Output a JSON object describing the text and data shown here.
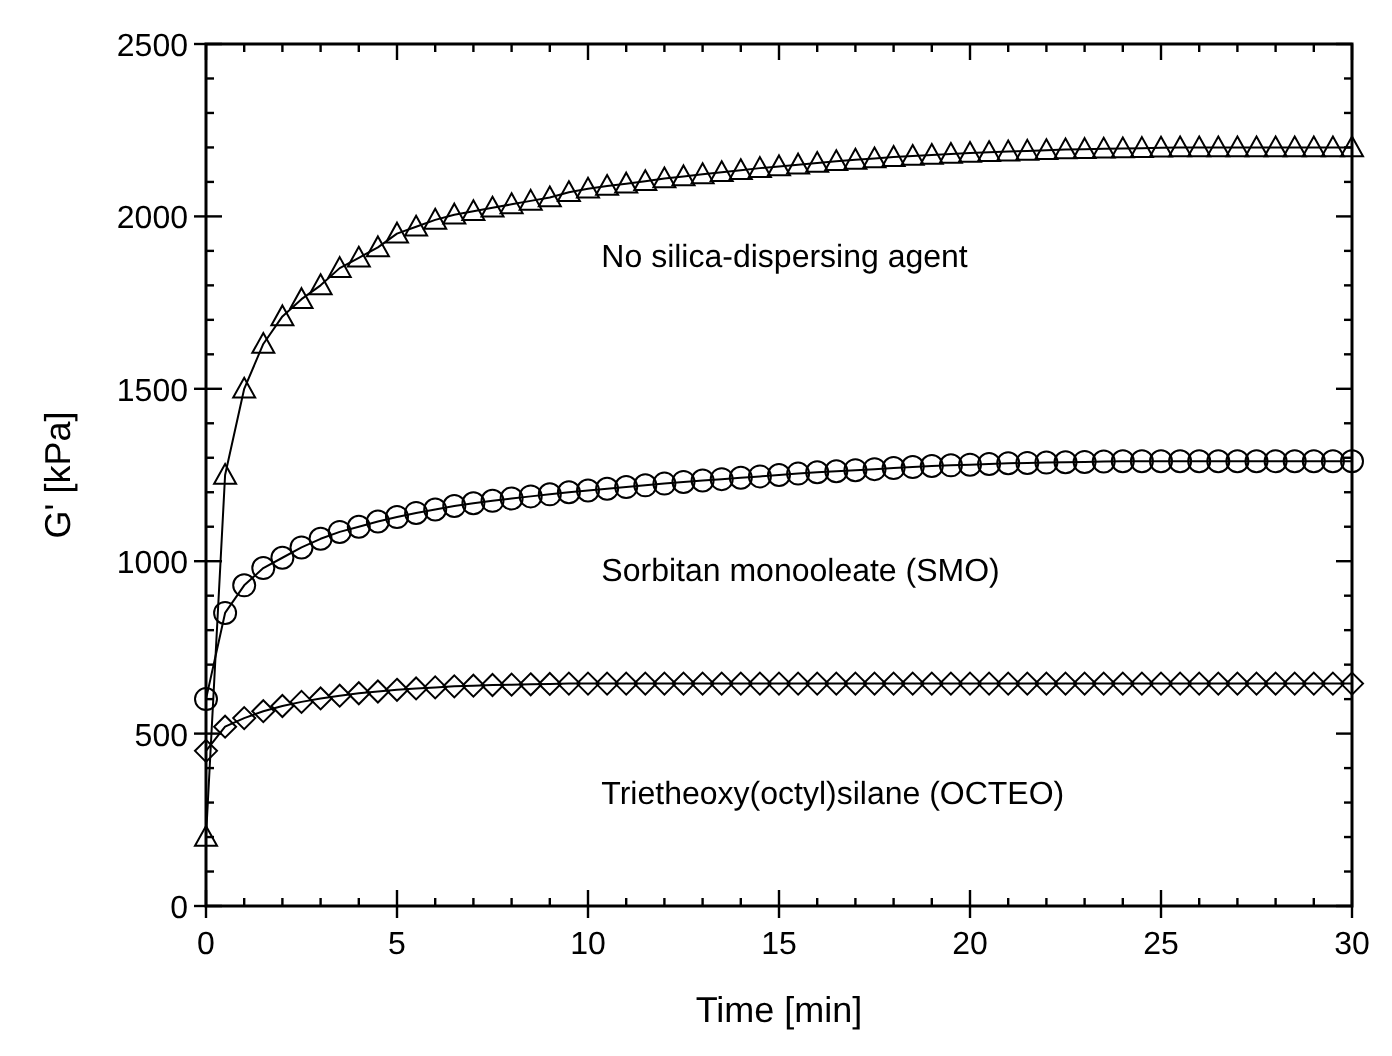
{
  "chart_data": {
    "type": "line",
    "xlabel": "Time [min]",
    "ylabel": "G' [kPa]",
    "x": [
      0,
      0.5,
      1,
      1.5,
      2,
      2.5,
      3,
      3.5,
      4,
      4.5,
      5,
      5.5,
      6,
      6.5,
      7,
      7.5,
      8,
      8.5,
      9,
      9.5,
      10,
      10.5,
      11,
      11.5,
      12,
      12.5,
      13,
      13.5,
      14,
      14.5,
      15,
      15.5,
      16,
      16.5,
      17,
      17.5,
      18,
      18.5,
      19,
      19.5,
      20,
      20.5,
      21,
      21.5,
      22,
      22.5,
      23,
      23.5,
      24,
      24.5,
      25,
      25.5,
      26,
      26.5,
      27,
      27.5,
      28,
      28.5,
      29,
      29.5,
      30
    ],
    "xlim": [
      0,
      30
    ],
    "xticks": [
      0,
      5,
      10,
      15,
      20,
      25,
      30
    ],
    "ylim": [
      0,
      2500
    ],
    "yticks": [
      0,
      500,
      1000,
      1500,
      2000,
      2500
    ],
    "grid": false,
    "line_style": "solid",
    "series": [
      {
        "name": "No silica-dispersing agent",
        "color": "#000000",
        "marker": "triangle",
        "values": [
          200,
          1250,
          1500,
          1630,
          1710,
          1760,
          1800,
          1850,
          1880,
          1910,
          1950,
          1970,
          1990,
          2005,
          2015,
          2025,
          2035,
          2045,
          2055,
          2070,
          2080,
          2088,
          2095,
          2102,
          2110,
          2116,
          2122,
          2128,
          2134,
          2140,
          2145,
          2150,
          2155,
          2160,
          2164,
          2168,
          2172,
          2175,
          2178,
          2181,
          2184,
          2186,
          2188,
          2190,
          2192,
          2194,
          2195,
          2196,
          2197,
          2198,
          2199,
          2200,
          2200,
          2200,
          2200,
          2200,
          2200,
          2200,
          2200,
          2200,
          2200
        ]
      },
      {
        "name": "Sorbitan monooleate (SMO)",
        "color": "#000000",
        "marker": "circle",
        "values": [
          600,
          850,
          930,
          980,
          1010,
          1040,
          1065,
          1085,
          1100,
          1115,
          1128,
          1140,
          1150,
          1160,
          1168,
          1175,
          1182,
          1188,
          1194,
          1200,
          1205,
          1210,
          1215,
          1220,
          1225,
          1230,
          1234,
          1238,
          1242,
          1246,
          1250,
          1254,
          1258,
          1261,
          1264,
          1267,
          1270,
          1273,
          1276,
          1278,
          1280,
          1282,
          1284,
          1285,
          1286,
          1287,
          1288,
          1289,
          1290,
          1290,
          1290,
          1290,
          1290,
          1290,
          1290,
          1290,
          1290,
          1290,
          1290,
          1290,
          1290
        ]
      },
      {
        "name": "Trietheoxy(octyl)silane (OCTEO)",
        "color": "#000000",
        "marker": "diamond",
        "values": [
          450,
          520,
          545,
          565,
          580,
          592,
          602,
          610,
          617,
          622,
          627,
          631,
          634,
          637,
          639,
          641,
          642,
          643,
          644,
          645,
          645,
          645,
          645,
          645,
          645,
          645,
          645,
          645,
          645,
          645,
          645,
          645,
          645,
          645,
          645,
          645,
          645,
          645,
          645,
          645,
          645,
          645,
          645,
          645,
          645,
          645,
          645,
          645,
          645,
          645,
          645,
          645,
          645,
          645,
          645,
          645,
          645,
          645,
          645,
          645,
          645
        ]
      }
    ]
  }
}
